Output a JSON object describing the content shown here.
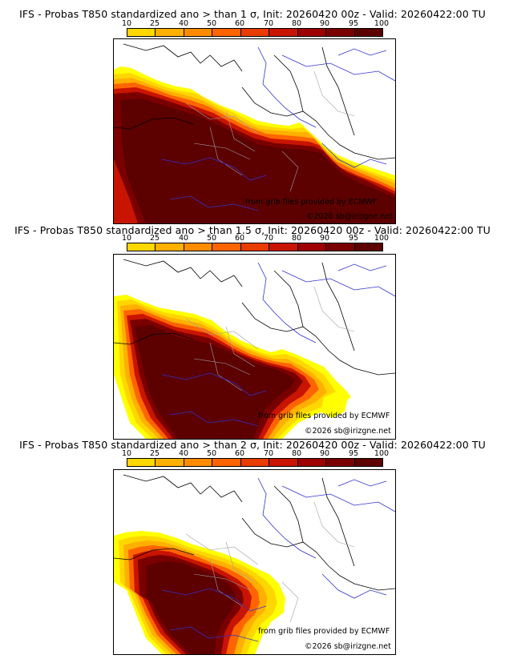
{
  "colors": {
    "levels": [
      "#ffff00",
      "#ffd700",
      "#ffb000",
      "#ff8c00",
      "#ff6400",
      "#e83c00",
      "#c81400",
      "#9e0000",
      "#7a0000",
      "#5c0000"
    ],
    "background": "#ffffff",
    "rivers": "#3232cc",
    "borders": "#000000",
    "admin": "#a0a0a0"
  },
  "colorbar": {
    "ticks": [
      "10",
      "25",
      "40",
      "50",
      "60",
      "70",
      "80",
      "90",
      "95",
      "100"
    ]
  },
  "panels": [
    {
      "title": "IFS - Probas T850  standardized ano > than 1 σ, Init: 20260420 00z - Valid: 20260422:00 TU",
      "credit_line1": "from grib files provided by ECMWF",
      "credit_line2": "©2026 sb@irizgne.net"
    },
    {
      "title": "IFS - Probas T850  standardized ano > than 1.5 σ, Init: 20260420 00z - Valid: 20260422:00 TU",
      "credit_line1": "from grib files provided by ECMWF",
      "credit_line2": "©2026 sb@irizgne.net"
    },
    {
      "title": "IFS - Probas T850  standardized ano > than 2 σ, Init: 20260420 00z - Valid: 20260422:00 TU",
      "credit_line1": "from grib files provided by ECMWF",
      "credit_line2": "©2026 sb@irizgne.net"
    }
  ]
}
